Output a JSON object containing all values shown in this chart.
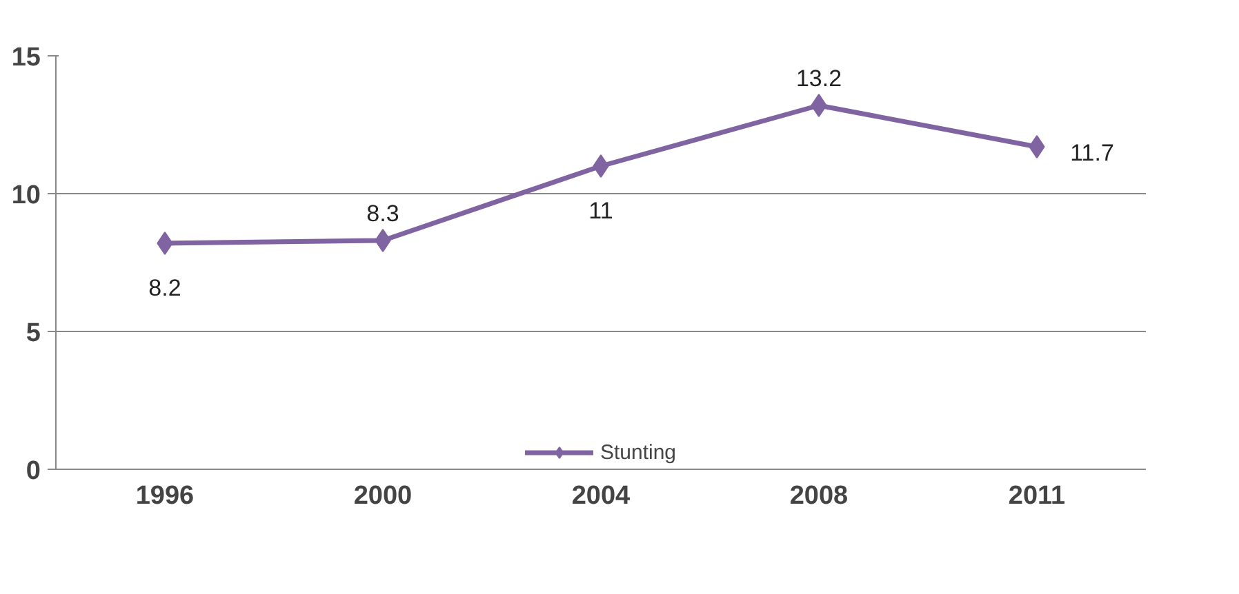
{
  "chart_data": {
    "type": "line",
    "categories": [
      "1996",
      "2000",
      "2004",
      "2008",
      "2011"
    ],
    "series": [
      {
        "name": "Stunting",
        "color": "#8064a2",
        "values": [
          8.2,
          8.3,
          11,
          13.2,
          11.7
        ]
      }
    ],
    "ylim": [
      0,
      15
    ],
    "yticks": [
      0,
      5,
      10,
      15
    ],
    "grid": "y",
    "legend": "bottom",
    "marker": "diamond",
    "line_style": "solid",
    "data_labels": true
  }
}
